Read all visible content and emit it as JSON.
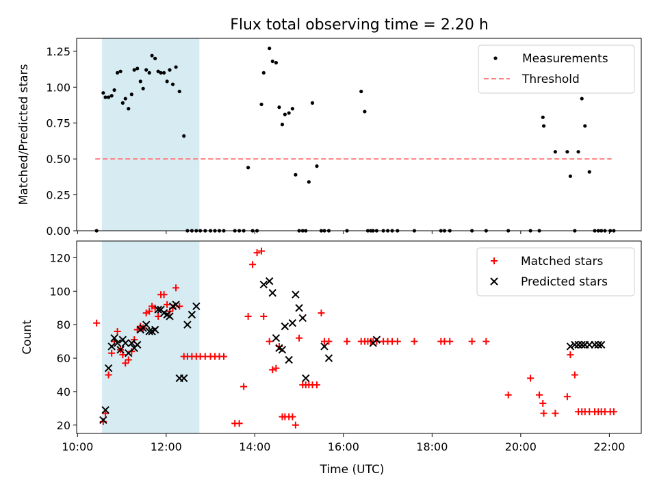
{
  "chart_data": [
    {
      "type": "scatter",
      "title": "Flux total observing time = 2.20 h",
      "ylabel": "Matched/Predicted stars",
      "xlabel": "",
      "x_unit": "hours UTC",
      "xlim": [
        9.98,
        22.72
      ],
      "ylim": [
        0,
        1.34
      ],
      "yticks": [
        0,
        0.25,
        0.5,
        0.75,
        1.0,
        1.25
      ],
      "ytick_labels": [
        "0.00",
        "0.25",
        "0.50",
        "0.75",
        "1.00",
        "1.25"
      ],
      "shaded_span": [
        10.55,
        12.75
      ],
      "legend_position": "top-right",
      "series": [
        {
          "name": "Measurements",
          "marker": "dot",
          "color": "#000000",
          "x": [
            10.43,
            10.58,
            10.63,
            10.7,
            10.77,
            10.83,
            10.9,
            10.97,
            11.02,
            11.08,
            11.15,
            11.22,
            11.28,
            11.35,
            11.42,
            11.48,
            11.55,
            11.62,
            11.68,
            11.75,
            11.82,
            11.88,
            11.95,
            12.02,
            12.08,
            12.15,
            12.22,
            12.3,
            12.4,
            12.48,
            12.58,
            12.68,
            12.77,
            12.88,
            13.0,
            13.1,
            13.2,
            13.3,
            13.55,
            13.65,
            13.75,
            13.85,
            13.95,
            14.05,
            14.15,
            14.2,
            14.33,
            14.4,
            14.48,
            14.55,
            14.62,
            14.68,
            14.77,
            14.85,
            14.92,
            15.0,
            15.08,
            15.15,
            15.22,
            15.3,
            15.4,
            15.5,
            15.57,
            15.67,
            16.08,
            16.4,
            16.48,
            16.55,
            16.62,
            16.67,
            16.75,
            16.9,
            17.0,
            17.1,
            17.22,
            17.6,
            18.2,
            18.28,
            18.4,
            18.9,
            19.22,
            19.72,
            20.22,
            20.42,
            20.5,
            20.52,
            20.78,
            21.05,
            21.12,
            21.22,
            21.3,
            21.38,
            21.45,
            21.55,
            21.67,
            21.75,
            21.82,
            21.9,
            22.02,
            22.1
          ],
          "y": [
            0.0,
            0.96,
            0.93,
            0.93,
            0.94,
            0.98,
            1.1,
            1.11,
            0.89,
            0.92,
            0.85,
            0.95,
            1.12,
            1.13,
            1.04,
            0.99,
            1.12,
            1.1,
            1.22,
            1.2,
            1.11,
            1.1,
            1.1,
            1.04,
            1.12,
            1.02,
            1.14,
            0.97,
            0.66,
            0.0,
            0.0,
            0.0,
            0.0,
            0.0,
            0.0,
            0.0,
            0.0,
            0.0,
            0.0,
            0.0,
            0.0,
            0.44,
            0.0,
            0.0,
            0.88,
            1.1,
            1.27,
            1.18,
            1.17,
            0.86,
            0.74,
            0.81,
            0.82,
            0.85,
            0.39,
            0.0,
            0.0,
            0.0,
            0.34,
            0.89,
            0.45,
            0.0,
            0.0,
            0.0,
            0.0,
            0.97,
            0.83,
            0.0,
            0.0,
            0.0,
            0.0,
            0.0,
            0.0,
            0.0,
            0.0,
            0.0,
            0.0,
            0.0,
            0.0,
            0.0,
            0.0,
            0.0,
            0.0,
            0.0,
            0.79,
            0.73,
            0.55,
            0.55,
            0.38,
            0.0,
            0.55,
            0.92,
            0.73,
            0.41,
            0.0,
            0.0,
            0.0,
            0.0,
            0.0,
            0.0
          ]
        },
        {
          "name": "Threshold",
          "marker": "dashed-line",
          "color": "#ff7f7f",
          "x": [
            10.4,
            22.05
          ],
          "y": [
            0.5,
            0.5
          ]
        }
      ]
    },
    {
      "type": "scatter",
      "title": "",
      "ylabel": "Count",
      "xlabel": "Time (UTC)",
      "x_unit": "hours UTC",
      "xlim": [
        9.98,
        22.72
      ],
      "ylim": [
        15,
        130
      ],
      "yticks": [
        20,
        40,
        60,
        80,
        100,
        120
      ],
      "ytick_labels": [
        "20",
        "40",
        "60",
        "80",
        "100",
        "120"
      ],
      "xticks": [
        10,
        12,
        14,
        16,
        18,
        20,
        22
      ],
      "xtick_labels": [
        "10:00",
        "12:00",
        "14:00",
        "16:00",
        "18:00",
        "20:00",
        "22:00"
      ],
      "shaded_span": [
        10.55,
        12.75
      ],
      "legend_position": "top-right",
      "series": [
        {
          "name": "Matched stars",
          "marker": "plus",
          "color": "#ff0000",
          "x": [
            10.43,
            10.58,
            10.63,
            10.7,
            10.77,
            10.83,
            10.9,
            10.97,
            11.02,
            11.08,
            11.15,
            11.22,
            11.28,
            11.35,
            11.42,
            11.48,
            11.55,
            11.62,
            11.68,
            11.75,
            11.82,
            11.88,
            11.95,
            12.02,
            12.08,
            12.15,
            12.22,
            12.3,
            12.4,
            12.48,
            12.58,
            12.68,
            12.77,
            12.88,
            13.0,
            13.1,
            13.2,
            13.3,
            13.55,
            13.65,
            13.75,
            13.85,
            13.95,
            14.05,
            14.15,
            14.2,
            14.33,
            14.4,
            14.48,
            14.55,
            14.62,
            14.68,
            14.77,
            14.85,
            14.92,
            15.0,
            15.08,
            15.15,
            15.22,
            15.3,
            15.4,
            15.5,
            15.57,
            15.67,
            16.08,
            16.4,
            16.48,
            16.55,
            16.62,
            16.67,
            16.75,
            16.9,
            17.0,
            17.1,
            17.22,
            17.6,
            18.2,
            18.28,
            18.4,
            18.9,
            19.22,
            19.72,
            20.22,
            20.42,
            20.5,
            20.52,
            20.78,
            21.05,
            21.12,
            21.22,
            21.3,
            21.38,
            21.45,
            21.55,
            21.67,
            21.75,
            21.82,
            21.9,
            22.02,
            22.1
          ],
          "y": [
            81,
            22,
            27,
            50,
            63,
            70,
            76,
            65,
            62,
            57,
            59,
            64,
            71,
            77,
            79,
            78,
            87,
            88,
            91,
            90,
            85,
            98,
            98,
            92,
            88,
            90,
            102,
            91,
            61,
            61,
            61,
            61,
            61,
            61,
            61,
            61,
            61,
            61,
            21,
            21,
            43,
            85,
            116,
            123,
            124,
            85,
            70,
            53,
            54,
            67,
            25,
            25,
            25,
            25,
            20,
            72,
            44,
            44,
            44,
            44,
            44,
            87,
            70,
            70,
            70,
            70,
            70,
            70,
            70,
            70,
            70,
            70,
            70,
            70,
            70,
            70,
            70,
            70,
            70,
            70,
            70,
            38,
            48,
            38,
            33,
            27,
            27,
            37,
            62,
            50,
            28,
            28,
            28,
            28,
            28,
            28,
            28,
            28,
            28,
            28
          ]
        },
        {
          "name": "Predicted stars",
          "marker": "x",
          "color": "#000000",
          "x": [
            10.58,
            10.63,
            10.7,
            10.77,
            10.83,
            10.9,
            10.97,
            11.02,
            11.08,
            11.15,
            11.22,
            11.28,
            11.35,
            11.42,
            11.48,
            11.55,
            11.62,
            11.68,
            11.75,
            11.82,
            11.88,
            11.95,
            12.02,
            12.08,
            12.15,
            12.22,
            12.3,
            12.4,
            12.48,
            12.58,
            12.68,
            14.2,
            14.33,
            14.4,
            14.48,
            14.55,
            14.62,
            14.68,
            14.77,
            14.85,
            14.92,
            15.0,
            15.08,
            15.15,
            15.57,
            15.67,
            16.67,
            16.75,
            21.12,
            21.22,
            21.3,
            21.38,
            21.45,
            21.55,
            21.67,
            21.75,
            21.82
          ],
          "y": [
            23,
            29,
            54,
            67,
            72,
            69,
            65,
            71,
            69,
            63,
            69,
            66,
            68,
            77,
            78,
            80,
            76,
            76,
            77,
            89,
            89,
            87,
            86,
            85,
            91,
            92,
            48,
            48,
            80,
            86,
            91,
            104,
            106,
            99,
            72,
            66,
            65,
            79,
            59,
            81,
            98,
            90,
            84,
            48,
            67,
            60,
            69,
            71,
            67,
            68,
            68,
            68,
            68,
            68,
            68,
            68,
            68
          ]
        }
      ]
    }
  ]
}
